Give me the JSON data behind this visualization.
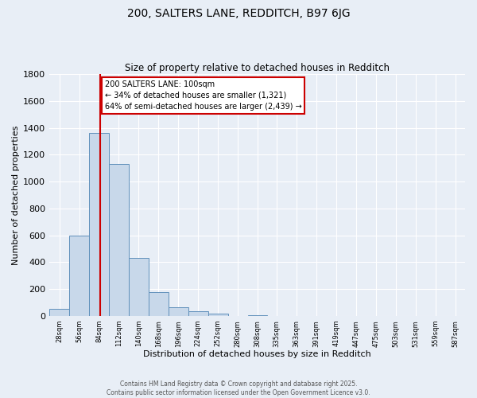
{
  "title": "200, SALTERS LANE, REDDITCH, B97 6JG",
  "subtitle": "Size of property relative to detached houses in Redditch",
  "xlabel": "Distribution of detached houses by size in Redditch",
  "ylabel": "Number of detached properties",
  "bar_color": "#c8d8ea",
  "bar_edge_color": "#6090bb",
  "background_color": "#e8eef6",
  "grid_color": "#ffffff",
  "bin_starts": [
    28,
    56,
    84,
    112,
    140,
    168,
    196,
    224,
    252,
    280,
    308,
    335,
    363,
    391,
    419,
    447,
    475,
    503,
    531,
    559,
    587
  ],
  "bin_width": 28,
  "bar_heights": [
    55,
    600,
    1360,
    1130,
    430,
    175,
    65,
    35,
    20,
    0,
    5,
    0,
    0,
    0,
    0,
    0,
    0,
    0,
    0,
    0,
    0
  ],
  "red_line_x": 100,
  "red_line_color": "#cc0000",
  "annotation_line1": "200 SALTERS LANE: 100sqm",
  "annotation_line2": "← 34% of detached houses are smaller (1,321)",
  "annotation_line3": "64% of semi-detached houses are larger (2,439) →",
  "annotation_box_color": "#ffffff",
  "annotation_box_edge_color": "#cc0000",
  "ylim": [
    0,
    1800
  ],
  "yticks": [
    0,
    200,
    400,
    600,
    800,
    1000,
    1200,
    1400,
    1600,
    1800
  ],
  "tick_labels": [
    "28sqm",
    "56sqm",
    "84sqm",
    "112sqm",
    "140sqm",
    "168sqm",
    "196sqm",
    "224sqm",
    "252sqm",
    "280sqm",
    "308sqm",
    "335sqm",
    "363sqm",
    "391sqm",
    "419sqm",
    "447sqm",
    "475sqm",
    "503sqm",
    "531sqm",
    "559sqm",
    "587sqm"
  ],
  "footer_line1": "Contains HM Land Registry data © Crown copyright and database right 2025.",
  "footer_line2": "Contains public sector information licensed under the Open Government Licence v3.0."
}
